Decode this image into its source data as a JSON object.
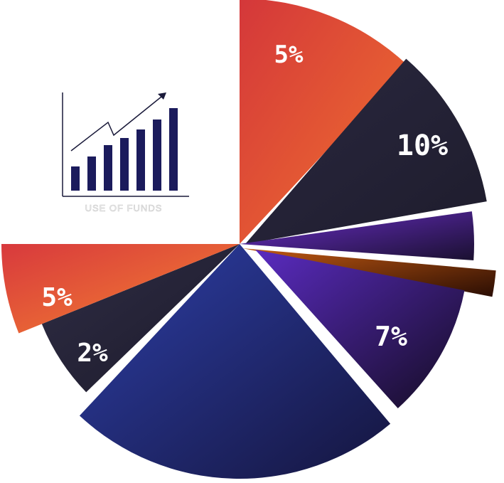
{
  "chart_data": {
    "type": "pie",
    "title": "",
    "slices": [
      {
        "label": "5%",
        "value": 5,
        "color_start": "#d4373a",
        "color_end": "#f0722e"
      },
      {
        "label": "10%",
        "value": 10,
        "color_start": "#2a2840",
        "color_end": "#1e1c2c"
      },
      {
        "label": "",
        "value": 4,
        "color_start": "#6a2ec8",
        "color_end": "#1a1030"
      },
      {
        "label": "",
        "value": 1,
        "color_start": "#c35a12",
        "color_end": "#2a0d03"
      },
      {
        "label": "7%",
        "value": 7,
        "color_start": "#5a2bc0",
        "color_end": "#140c22"
      },
      {
        "label": "",
        "value": 20,
        "color_start": "#2d3fa8",
        "color_end": "#15153e"
      },
      {
        "label": "2%",
        "value": 2,
        "color_start": "#2f2d45",
        "color_end": "#1c1a2a"
      },
      {
        "label": "5%",
        "value": 5,
        "color_start": "#d8393d",
        "color_end": "#f48430"
      }
    ],
    "legend": "none",
    "grid": false
  },
  "icon": {
    "name": "growth-chart-icon",
    "caption": "USE OF FUNDS",
    "bar_color": "#1b1b5c",
    "line_color": "#1a1a3a"
  }
}
